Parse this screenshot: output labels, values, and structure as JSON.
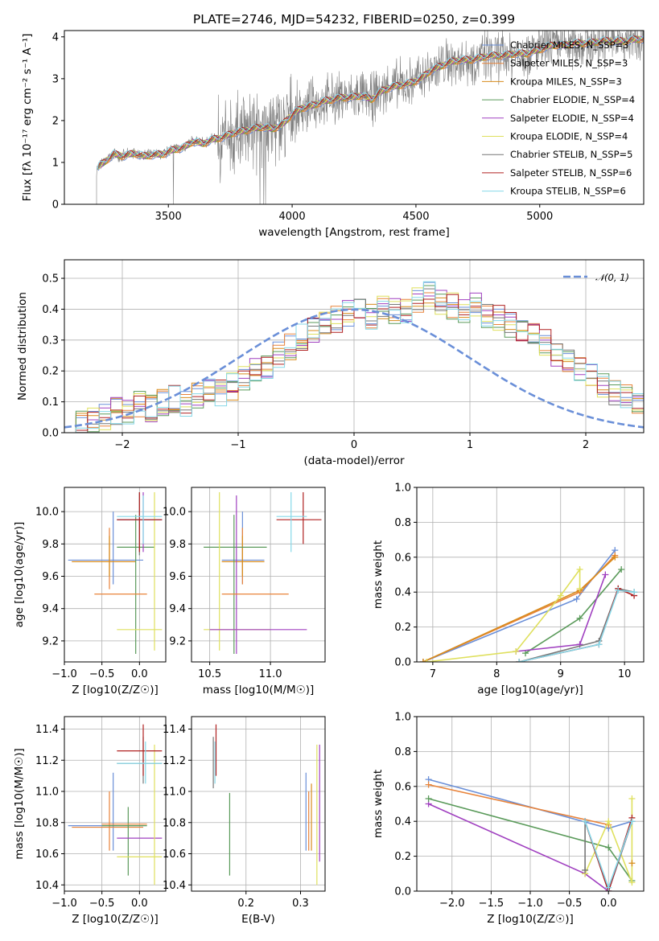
{
  "series_colors": [
    "#6a8fd8",
    "#e8833a",
    "#d88c1c",
    "#5a9a5a",
    "#a040c0",
    "#dfe05e",
    "#777777",
    "#b02020",
    "#86d8e8"
  ],
  "chart_data": [
    {
      "id": "spectrum",
      "type": "line",
      "title": "PLATE=2746, MJD=54232, FIBERID=0250, z=0.399",
      "xlabel": "wavelength [Angstrom, rest frame]",
      "ylabel": "Flux [fλ 10⁻¹⁷ erg cm⁻² s⁻¹ A⁻¹]",
      "xlim": [
        3080,
        5420
      ],
      "ylim": [
        0,
        4.15
      ],
      "xticks": [
        3500,
        4000,
        4500,
        5000
      ],
      "yticks": [
        0,
        1,
        2,
        3,
        4
      ],
      "grid": false,
      "legend_position": "top-right",
      "legend": [
        "Chabrier MILES, N_SSP=3",
        "Salpeter MILES, N_SSP=3",
        "Kroupa MILES, N_SSP=3",
        "Chabrier ELODIE, N_SSP=4",
        "Salpeter ELODIE, N_SSP=4",
        "Kroupa ELODIE, N_SSP=4",
        "Chabrier STELIB, N_SSP=5",
        "Salpeter STELIB, N_SSP=6",
        "Kroupa STELIB, N_SSP=6"
      ],
      "model_x": [
        3210,
        3240,
        3280,
        3320,
        3360,
        3400,
        3440,
        3480,
        3520,
        3560,
        3600,
        3640,
        3680,
        3720,
        3760,
        3800,
        3840,
        3880,
        3920,
        3960,
        4000,
        4040,
        4080,
        4120,
        4160,
        4200,
        4240,
        4280,
        4320,
        4360,
        4400,
        4440,
        4480,
        4520,
        4560,
        4600,
        4640,
        4680,
        4720,
        4760,
        4800,
        4850,
        4900,
        4950,
        5000,
        5050,
        5100,
        5150,
        5200,
        5250,
        5300,
        5350,
        5400
      ],
      "model_y": [
        0.85,
        1.0,
        1.2,
        1.15,
        1.22,
        1.15,
        1.18,
        1.2,
        1.3,
        1.35,
        1.5,
        1.45,
        1.55,
        1.6,
        1.7,
        1.75,
        1.8,
        1.85,
        1.8,
        1.9,
        2.15,
        2.3,
        2.35,
        2.45,
        2.5,
        2.55,
        2.55,
        2.6,
        2.5,
        2.7,
        2.8,
        2.85,
        2.9,
        3.0,
        3.2,
        3.3,
        3.4,
        3.45,
        3.45,
        3.5,
        3.55,
        3.55,
        3.6,
        3.6,
        3.7,
        3.8,
        3.8,
        3.85,
        3.85,
        3.9,
        3.9,
        3.9,
        3.95
      ]
    },
    {
      "id": "residuals",
      "type": "step",
      "xlabel": "(data-model)/error",
      "ylabel": "Normed distribution",
      "xlim": [
        -2.5,
        2.5
      ],
      "ylim": [
        0,
        0.56
      ],
      "xticks": [
        -2,
        -1,
        0,
        1,
        2
      ],
      "yticks": [
        0.0,
        0.1,
        0.2,
        0.3,
        0.4,
        0.5
      ],
      "grid": true,
      "legend_position": "top-right",
      "legend": [
        "𝒩(0, 1)"
      ],
      "bin_edges_start": -2.5,
      "bin_width": 0.1,
      "bin_count": 50,
      "hist": [
        0.02,
        0.03,
        0.04,
        0.05,
        0.07,
        0.06,
        0.09,
        0.08,
        0.1,
        0.11,
        0.09,
        0.12,
        0.14,
        0.13,
        0.15,
        0.17,
        0.2,
        0.22,
        0.25,
        0.28,
        0.31,
        0.33,
        0.35,
        0.37,
        0.39,
        0.4,
        0.38,
        0.41,
        0.39,
        0.4,
        0.43,
        0.45,
        0.42,
        0.41,
        0.4,
        0.41,
        0.38,
        0.37,
        0.35,
        0.34,
        0.32,
        0.29,
        0.26,
        0.23,
        0.21,
        0.18,
        0.15,
        0.13,
        0.11,
        0.09
      ]
    },
    {
      "id": "age-vs-Z",
      "type": "errorbar",
      "xlabel": "Z [log10(Z/Z☉)]",
      "ylabel": "age  [log10(age/yr)]",
      "xlim": [
        -1.0,
        0.35
      ],
      "ylim": [
        9.07,
        10.15
      ],
      "xticks": [
        -1.0,
        -0.5,
        0.0
      ],
      "yticks": [
        9.2,
        9.4,
        9.6,
        9.8,
        10.0
      ],
      "grid": true,
      "points": [
        {
          "s": 0,
          "x": -0.35,
          "xe": [
            -0.95,
            0.05
          ],
          "y": 9.7,
          "ye": [
            9.55,
            10.0
          ]
        },
        {
          "s": 1,
          "x": -0.4,
          "xe": [
            -0.9,
            -0.05
          ],
          "y": 9.69,
          "ye": [
            9.52,
            9.9
          ]
        },
        {
          "s": 2,
          "x": -0.4,
          "xe": [
            -0.9,
            -0.05
          ],
          "y": 9.69,
          "ye": [
            9.6,
            9.85
          ]
        },
        {
          "s": 3,
          "x": -0.05,
          "xe": [
            -0.3,
            0.2
          ],
          "y": 9.78,
          "ye": [
            9.12,
            9.98
          ]
        },
        {
          "s": 4,
          "x": 0.05,
          "xe": [
            -0.3,
            0.3
          ],
          "y": 9.95,
          "ye": [
            9.75,
            10.12
          ]
        },
        {
          "s": 5,
          "x": 0.2,
          "xe": [
            -0.3,
            0.3
          ],
          "y": 9.27,
          "ye": [
            9.14,
            10.12
          ]
        },
        {
          "s": 6,
          "x": 0.0,
          "xe": [
            -0.3,
            0.3
          ],
          "y": 9.95,
          "ye": [
            9.73,
            10.12
          ]
        },
        {
          "s": 7,
          "x": 0.0,
          "xe": [
            -0.3,
            0.3
          ],
          "y": 9.95,
          "ye": [
            9.75,
            10.12
          ]
        },
        {
          "s": 8,
          "x": 0.05,
          "xe": [
            -0.3,
            0.3
          ],
          "y": 9.97,
          "ye": [
            9.8,
            10.1
          ]
        },
        {
          "s": 1,
          "x": -0.1,
          "xe": [
            -0.6,
            0.1
          ],
          "y": 9.49,
          "ye": [
            9.49,
            9.49
          ]
        }
      ]
    },
    {
      "id": "age-vs-mass",
      "type": "errorbar",
      "xlabel": "mass [log10(M/M☉)]",
      "ylabel": "",
      "xlim": [
        10.35,
        11.45
      ],
      "ylim": [
        9.07,
        10.15
      ],
      "xticks": [
        10.5,
        11.0
      ],
      "yticks": [
        9.2,
        9.4,
        9.6,
        9.8,
        10.0
      ],
      "grid": true,
      "points": [
        {
          "s": 0,
          "x": 10.77,
          "xe": [
            10.6,
            10.95
          ],
          "y": 9.7,
          "ye": [
            9.55,
            10.0
          ]
        },
        {
          "s": 1,
          "x": 10.77,
          "xe": [
            10.6,
            10.95
          ],
          "y": 9.69,
          "ye": [
            9.55,
            9.9
          ]
        },
        {
          "s": 2,
          "x": 10.77,
          "xe": [
            10.6,
            10.95
          ],
          "y": 9.69,
          "ye": [
            9.6,
            9.85
          ]
        },
        {
          "s": 3,
          "x": 10.7,
          "xe": [
            10.45,
            10.97
          ],
          "y": 9.78,
          "ye": [
            9.12,
            9.98
          ]
        },
        {
          "s": 4,
          "x": 10.72,
          "xe": [
            10.72,
            10.72
          ],
          "y": 9.6,
          "ye": [
            9.12,
            10.1
          ]
        },
        {
          "s": 5,
          "x": 10.58,
          "xe": [
            10.45,
            11.0
          ],
          "y": 9.27,
          "ye": [
            9.14,
            10.12
          ]
        },
        {
          "s": 4,
          "x": 10.9,
          "xe": [
            10.5,
            11.3
          ],
          "y": 9.27,
          "ye": [
            9.27,
            9.27
          ]
        },
        {
          "s": 7,
          "x": 11.27,
          "xe": [
            11.05,
            11.42
          ],
          "y": 9.95,
          "ye": [
            9.8,
            10.12
          ]
        },
        {
          "s": 8,
          "x": 11.17,
          "xe": [
            11.05,
            11.3
          ],
          "y": 9.97,
          "ye": [
            9.75,
            10.12
          ]
        },
        {
          "s": 1,
          "x": 10.85,
          "xe": [
            10.6,
            11.15
          ],
          "y": 9.49,
          "ye": [
            9.49,
            9.49
          ]
        }
      ]
    },
    {
      "id": "mass-weight-vs-age",
      "type": "line",
      "xlabel": "age  [log10(age/yr)]",
      "ylabel": "mass weight",
      "xlim": [
        6.75,
        10.3
      ],
      "ylim": [
        0.0,
        1.0
      ],
      "xticks": [
        7,
        8,
        9,
        10
      ],
      "yticks": [
        0.0,
        0.2,
        0.4,
        0.6,
        0.8,
        1.0
      ],
      "grid": true,
      "series": [
        {
          "s": 0,
          "x": [
            6.85,
            9.25,
            9.85
          ],
          "y": [
            0.0,
            0.36,
            0.64
          ]
        },
        {
          "s": 1,
          "x": [
            6.85,
            9.3,
            9.85
          ],
          "y": [
            0.0,
            0.4,
            0.61
          ]
        },
        {
          "s": 2,
          "x": [
            6.85,
            9.3,
            9.85
          ],
          "y": [
            0.0,
            0.41,
            0.6
          ]
        },
        {
          "s": 3,
          "x": [
            8.45,
            9.3,
            9.95
          ],
          "y": [
            0.05,
            0.25,
            0.53
          ]
        },
        {
          "s": 4,
          "x": [
            8.3,
            9.3,
            9.7
          ],
          "y": [
            0.06,
            0.1,
            0.5
          ]
        },
        {
          "s": 5,
          "x": [
            6.9,
            8.3,
            9.0,
            9.3,
            9.3
          ],
          "y": [
            0.0,
            0.06,
            0.38,
            0.53,
            0.42
          ]
        },
        {
          "s": 6,
          "x": [
            8.35,
            9.6,
            9.9,
            10.15
          ],
          "y": [
            0.0,
            0.12,
            0.42,
            0.4
          ]
        },
        {
          "s": 7,
          "x": [
            8.35,
            9.6,
            9.9,
            10.15
          ],
          "y": [
            0.0,
            0.1,
            0.42,
            0.38
          ]
        },
        {
          "s": 8,
          "x": [
            8.35,
            9.6,
            9.9,
            10.15
          ],
          "y": [
            0.0,
            0.1,
            0.41,
            0.4
          ]
        }
      ]
    },
    {
      "id": "mass-vs-Z",
      "type": "errorbar",
      "xlabel": "Z [log10(Z/Z☉)]",
      "ylabel": "mass [log10(M/M☉)]",
      "xlim": [
        -1.0,
        0.35
      ],
      "ylim": [
        10.36,
        11.48
      ],
      "xticks": [
        -1.0,
        -0.5,
        0.0
      ],
      "yticks": [
        10.4,
        10.6,
        10.8,
        11.0,
        11.2,
        11.4
      ],
      "grid": true,
      "points": [
        {
          "s": 0,
          "x": -0.35,
          "xe": [
            -0.95,
            0.05
          ],
          "y": 10.78,
          "ye": [
            10.62,
            11.12
          ]
        },
        {
          "s": 1,
          "x": -0.4,
          "xe": [
            -0.9,
            0.05
          ],
          "y": 10.77,
          "ye": [
            10.62,
            11.0
          ]
        },
        {
          "s": 3,
          "x": -0.15,
          "xe": [
            -0.5,
            0.1
          ],
          "y": 10.78,
          "ye": [
            10.46,
            10.9
          ]
        },
        {
          "s": 4,
          "x": 0.0,
          "xe": [
            -0.3,
            0.3
          ],
          "y": 10.7,
          "ye": [
            10.7,
            10.7
          ]
        },
        {
          "s": 5,
          "x": 0.2,
          "xe": [
            -0.3,
            0.3
          ],
          "y": 10.58,
          "ye": [
            10.4,
            11.3
          ]
        },
        {
          "s": 6,
          "x": 0.05,
          "xe": [
            -0.3,
            0.3
          ],
          "y": 11.18,
          "ye": [
            11.05,
            11.35
          ]
        },
        {
          "s": 7,
          "x": 0.05,
          "xe": [
            -0.3,
            0.3
          ],
          "y": 11.26,
          "ye": [
            11.1,
            11.43
          ]
        },
        {
          "s": 8,
          "x": 0.08,
          "xe": [
            -0.3,
            0.3
          ],
          "y": 11.18,
          "ye": [
            11.05,
            11.32
          ]
        },
        {
          "s": 1,
          "x": -0.2,
          "xe": [
            -0.5,
            0.1
          ],
          "y": 10.79,
          "ye": [
            10.79,
            10.79
          ]
        }
      ]
    },
    {
      "id": "mass-vs-EBV",
      "type": "errorbar",
      "xlabel": "E(B-V)",
      "ylabel": "",
      "xlim": [
        0.1,
        0.345
      ],
      "ylim": [
        10.36,
        11.48
      ],
      "xticks": [
        0.2,
        0.3
      ],
      "yticks": [
        10.4,
        10.6,
        10.8,
        11.0,
        11.2,
        11.4
      ],
      "grid": true,
      "points": [
        {
          "s": 0,
          "x": 0.31,
          "xe": [
            0.31,
            0.31
          ],
          "y": 10.85,
          "ye": [
            10.62,
            11.12
          ]
        },
        {
          "s": 1,
          "x": 0.315,
          "xe": [
            0.315,
            0.315
          ],
          "y": 10.8,
          "ye": [
            10.62,
            11.0
          ]
        },
        {
          "s": 2,
          "x": 0.32,
          "xe": [
            0.32,
            0.32
          ],
          "y": 10.8,
          "ye": [
            10.62,
            11.05
          ]
        },
        {
          "s": 3,
          "x": 0.17,
          "xe": [
            0.17,
            0.17
          ],
          "y": 10.75,
          "ye": [
            10.46,
            10.99
          ]
        },
        {
          "s": 4,
          "x": 0.335,
          "xe": [
            0.335,
            0.335
          ],
          "y": 10.9,
          "ye": [
            10.55,
            11.3
          ]
        },
        {
          "s": 5,
          "x": 0.33,
          "xe": [
            0.33,
            0.33
          ],
          "y": 10.9,
          "ye": [
            10.4,
            11.3
          ]
        },
        {
          "s": 6,
          "x": 0.14,
          "xe": [
            0.14,
            0.14
          ],
          "y": 11.2,
          "ye": [
            11.02,
            11.35
          ]
        },
        {
          "s": 7,
          "x": 0.145,
          "xe": [
            0.145,
            0.145
          ],
          "y": 11.25,
          "ye": [
            11.1,
            11.43
          ]
        },
        {
          "s": 8,
          "x": 0.143,
          "xe": [
            0.143,
            0.143
          ],
          "y": 11.2,
          "ye": [
            11.05,
            11.32
          ]
        }
      ]
    },
    {
      "id": "mass-weight-vs-Z",
      "type": "line",
      "xlabel": "Z [log10(Z/Z☉)]",
      "ylabel": "mass weight",
      "xlim": [
        -2.45,
        0.45
      ],
      "ylim": [
        0.0,
        1.0
      ],
      "xticks": [
        -2.0,
        -1.5,
        -1.0,
        -0.5,
        0.0
      ],
      "yticks": [
        0.0,
        0.2,
        0.4,
        0.6,
        0.8,
        1.0
      ],
      "grid": true,
      "series": [
        {
          "s": 0,
          "x": [
            -2.3,
            0.0,
            0.3
          ],
          "y": [
            0.64,
            0.36,
            0.4
          ]
        },
        {
          "s": 1,
          "x": [
            -2.3,
            0.0
          ],
          "y": [
            0.61,
            0.38
          ]
        },
        {
          "s": 4,
          "x": [
            -2.3,
            -0.3,
            0.0,
            0.3
          ],
          "y": [
            0.5,
            0.1,
            0.0,
            0.4
          ]
        },
        {
          "s": 3,
          "x": [
            -2.3,
            0.0,
            0.3
          ],
          "y": [
            0.53,
            0.25,
            0.06
          ]
        },
        {
          "s": 5,
          "x": [
            -0.3,
            0.0,
            0.3,
            0.3
          ],
          "y": [
            0.1,
            0.4,
            0.05,
            0.53
          ]
        },
        {
          "s": 6,
          "x": [
            -0.3,
            -0.3,
            0.0,
            0.3
          ],
          "y": [
            0.12,
            0.4,
            0.0,
            0.4
          ]
        },
        {
          "s": 7,
          "x": [
            -0.3,
            0.0,
            0.3
          ],
          "y": [
            0.4,
            0.0,
            0.42
          ]
        },
        {
          "s": 8,
          "x": [
            -0.3,
            0.0,
            0.3
          ],
          "y": [
            0.4,
            0.02,
            0.4
          ]
        },
        {
          "s": 2,
          "x": [
            0.3
          ],
          "y": [
            0.16
          ]
        }
      ]
    }
  ]
}
